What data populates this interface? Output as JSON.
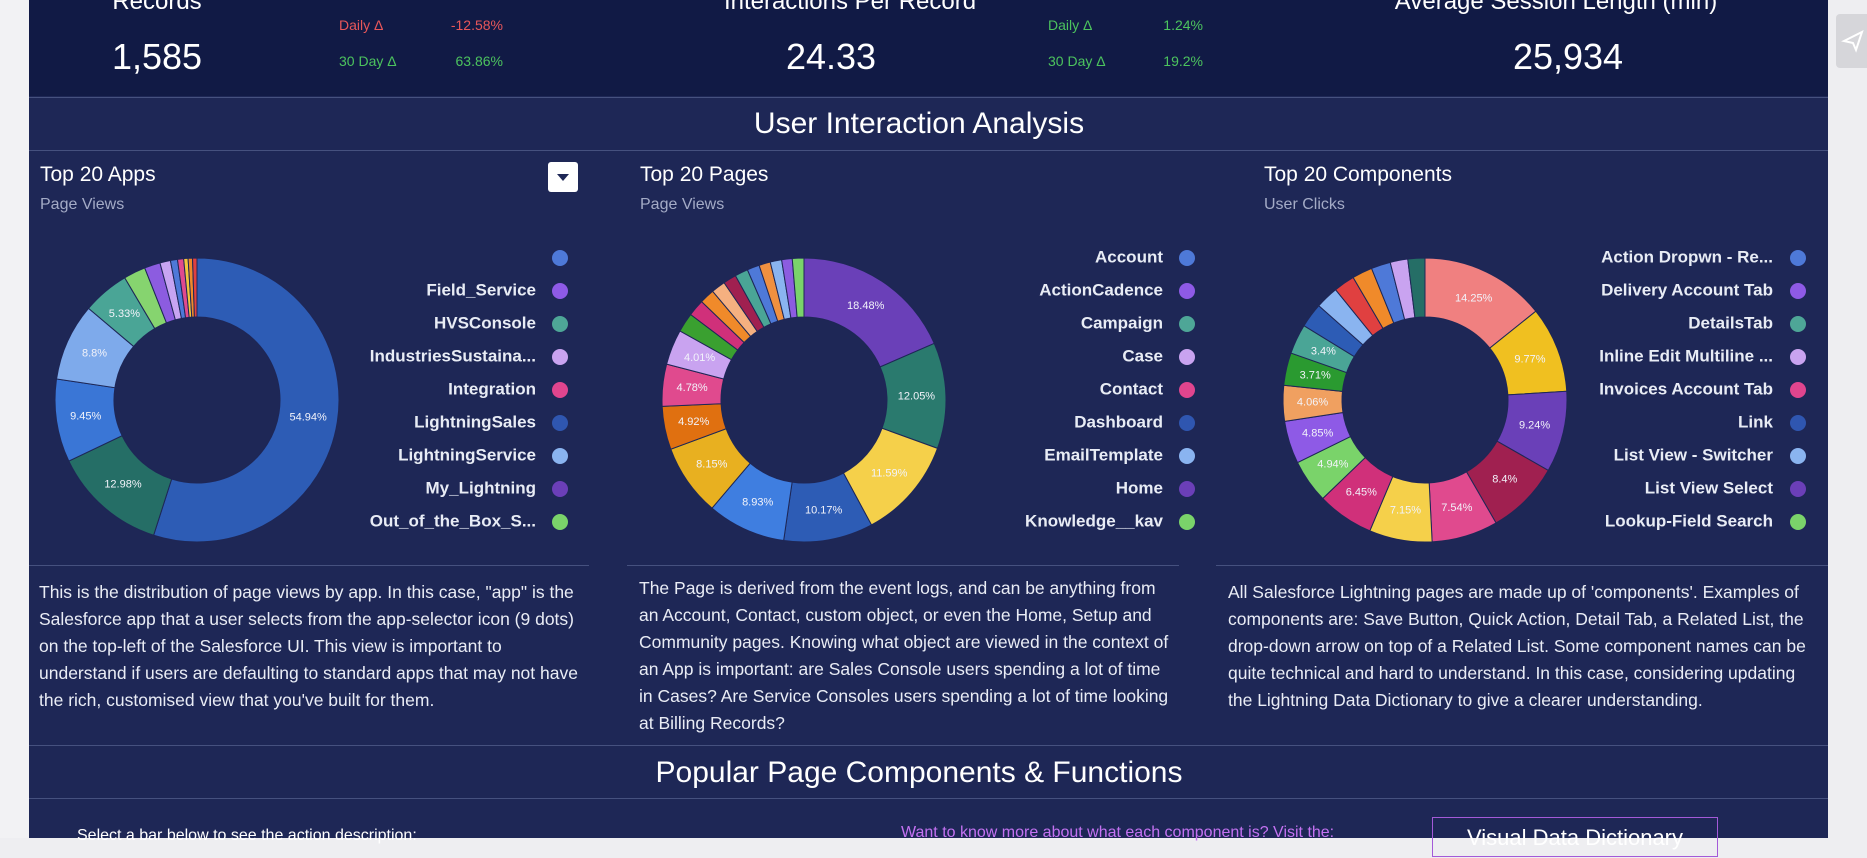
{
  "kpis": [
    {
      "title": "Records",
      "value": "1,585",
      "deltas": [
        {
          "label": "Daily Δ",
          "value": "-12.58%"
        },
        {
          "label": "30 Day Δ",
          "value": "63.86%"
        }
      ]
    },
    {
      "title": "Interactions Per Record",
      "value": "24.33",
      "deltas": [
        {
          "label": "Daily Δ",
          "value": "1.24%"
        },
        {
          "label": "30 Day Δ",
          "value": "19.2%"
        }
      ]
    },
    {
      "title": "Average Session Length (min)",
      "value": "25,934"
    }
  ],
  "sections": [
    "User Interaction Analysis",
    "Popular Page Components & Functions"
  ],
  "chart_data": [
    {
      "type": "donut",
      "title": "Top 20 Apps",
      "subtitle": "Page Views",
      "values": [
        54.94,
        12.98,
        9.45,
        8.8,
        5.33,
        2.5,
        1.8,
        1.2,
        0.8,
        0.7,
        0.5,
        0.5,
        0.5
      ],
      "value_labels": [
        "54.94%",
        "12.98%",
        "9.45%",
        "8.8%",
        "5.33%",
        null,
        null,
        null,
        null,
        null,
        null,
        null,
        null
      ],
      "colors": [
        "#2d5cb5",
        "#256e66",
        "#3a76d6",
        "#7eaaeb",
        "#4aa596",
        "#86d46f",
        "#8c5ce0",
        "#c7a4f2",
        "#4e79d8",
        "#e04a8e",
        "#f2c53d",
        "#f08a2a",
        "#e04040"
      ],
      "legend": [
        {
          "name": null,
          "color": "#4e79d8"
        },
        {
          "name": "Field_Service",
          "color": "#8e5ae6"
        },
        {
          "name": "HVSConsole",
          "color": "#4ea697"
        },
        {
          "name": "IndustriesSustaina...",
          "color": "#c9a3f0"
        },
        {
          "name": "Integration",
          "color": "#e0458e"
        },
        {
          "name": "LightningSales",
          "color": "#2f56b0"
        },
        {
          "name": "LightningService",
          "color": "#8ab4f0"
        },
        {
          "name": "My_Lightning",
          "color": "#6b3fb8"
        },
        {
          "name": "Out_of_the_Box_S...",
          "color": "#7ad36a"
        }
      ]
    },
    {
      "type": "donut",
      "title": "Top 20 Pages",
      "subtitle": "Page Views",
      "values": [
        18.48,
        12.05,
        11.59,
        10.17,
        8.93,
        8.15,
        4.92,
        4.78,
        4.01,
        2.2,
        1.9,
        1.7,
        1.6,
        1.5,
        1.5,
        1.4,
        1.3,
        1.3,
        1.2,
        1.32
      ],
      "value_labels": [
        "18.48%",
        "12.05%",
        "11.59%",
        "10.17%",
        "8.93%",
        "8.15%",
        "4.92%",
        "4.78%",
        "4.01%",
        null,
        null,
        null,
        null,
        null,
        null,
        null,
        null,
        null,
        null,
        null
      ],
      "colors": [
        "#6a40b8",
        "#2a7a6e",
        "#f5d04a",
        "#2d5cb5",
        "#3f7ee0",
        "#e8b020",
        "#e07010",
        "#e04a8e",
        "#c9a3f0",
        "#3aa030",
        "#d0307a",
        "#f08a2a",
        "#f5b080",
        "#a02050",
        "#4aa596",
        "#4e79d8",
        "#f09040",
        "#8ab4f0",
        "#8c5ce0",
        "#7ad36a"
      ],
      "legend": [
        {
          "name": "Account",
          "color": "#4e79d8"
        },
        {
          "name": "ActionCadence",
          "color": "#8e5ae6"
        },
        {
          "name": "Campaign",
          "color": "#4ea697"
        },
        {
          "name": "Case",
          "color": "#c9a3f0"
        },
        {
          "name": "Contact",
          "color": "#e0458e"
        },
        {
          "name": "Dashboard",
          "color": "#2f56b0"
        },
        {
          "name": "EmailTemplate",
          "color": "#8ab4f0"
        },
        {
          "name": "Home",
          "color": "#6b3fb8"
        },
        {
          "name": "Knowledge__kav",
          "color": "#7ad36a"
        }
      ]
    },
    {
      "type": "donut",
      "title": "Top 20 Components",
      "subtitle": "User Clicks",
      "values": [
        14.25,
        9.77,
        9.24,
        8.4,
        7.54,
        7.15,
        6.45,
        4.94,
        4.85,
        4.06,
        3.71,
        3.4,
        2.8,
        2.6,
        2.4,
        2.3,
        2.2,
        2.0,
        1.94
      ],
      "value_labels": [
        "14.25%",
        "9.77%",
        "9.24%",
        "8.4%",
        "7.54%",
        "7.15%",
        "6.45%",
        "4.94%",
        "4.85%",
        "4.06%",
        "3.71%",
        "3.4%",
        null,
        null,
        null,
        null,
        null,
        null,
        null
      ],
      "colors": [
        "#f08080",
        "#f0c020",
        "#6a40b8",
        "#a02050",
        "#e04a8e",
        "#f5d04a",
        "#d0307a",
        "#7ad36a",
        "#8e5ae6",
        "#f0a060",
        "#2a9a30",
        "#4aa596",
        "#2d5cb5",
        "#8ab4f0",
        "#e04040",
        "#f08a2a",
        "#4e79d8",
        "#c9a3f0",
        "#256e66"
      ],
      "legend": [
        {
          "name": "Action Dropwn - Re...",
          "color": "#4e79d8"
        },
        {
          "name": "Delivery Account Tab",
          "color": "#8e5ae6"
        },
        {
          "name": "DetailsTab",
          "color": "#4ea697"
        },
        {
          "name": "Inline Edit Multiline ...",
          "color": "#c9a3f0"
        },
        {
          "name": "Invoices Account Tab",
          "color": "#e0458e"
        },
        {
          "name": "Link",
          "color": "#2f56b0"
        },
        {
          "name": "List View - Switcher",
          "color": "#8ab4f0"
        },
        {
          "name": "List View Select",
          "color": "#6b3fb8"
        },
        {
          "name": "Lookup-Field Search",
          "color": "#7ad36a"
        }
      ]
    }
  ],
  "descriptions": [
    "This is the distribution of page views by app. In this case, \"app\" is the Salesforce app that a user selects from the app-selector icon (9 dots) on the top-left of the Salesforce UI.  This view is important to understand if users are defaulting to standard apps that may not have the rich, customised view that you've built for them.",
    "The Page is derived from the event logs, and can be anything from an Account, Contact, custom object, or even the Home, Setup and Community pages. Knowing what object are viewed in the context of an App is important: are Sales Console users spending a lot of time in Cases? Are Service Consoles users spending a lot of time looking at Billing Records?",
    "All Salesforce Lightning pages are made up of 'components'. Examples of components are: Save Button, Quick Action, Detail Tab, a Related List, the drop-down arrow on top of a Related List. Some component names can be quite technical and hard to understand. In this case, considering updating the Lightning Data Dictionary to give a clearer understanding."
  ],
  "footer": {
    "prompt": "Select a bar below to see the action description:",
    "link_text": "Want to know more about what each component is? Visit the:",
    "button": "Visual Data Dictionary"
  }
}
